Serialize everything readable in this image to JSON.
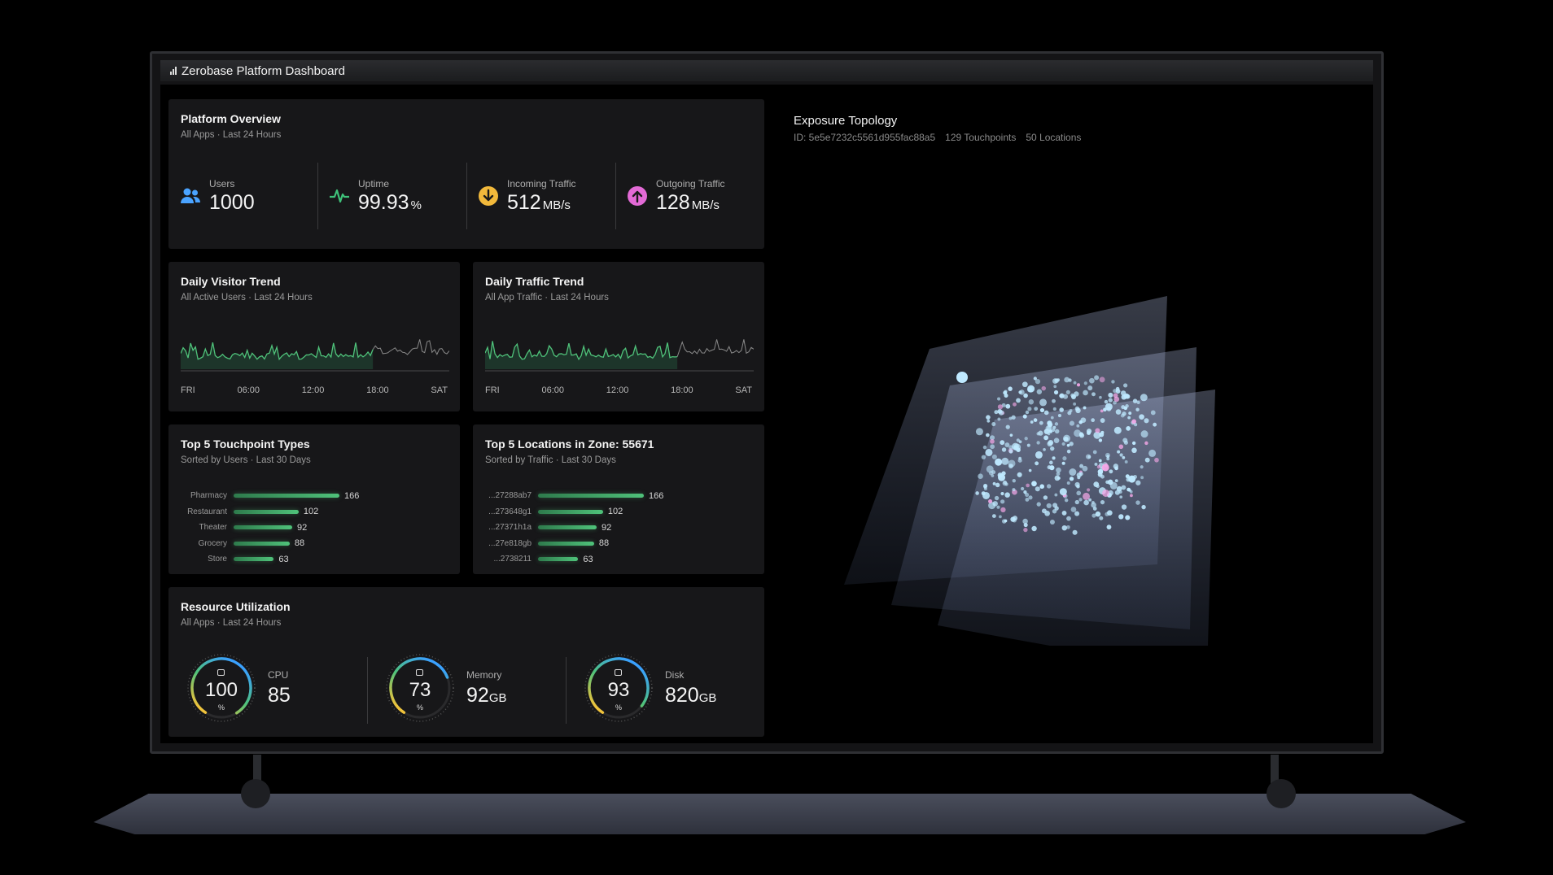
{
  "window": {
    "title": "Zerobase Platform Dashboard"
  },
  "overview": {
    "title": "Platform Overview",
    "subtitle": "All Apps · Last 24 Hours",
    "kpis": [
      {
        "label": "Users",
        "value": "1000",
        "unit": "",
        "icon": "users-icon",
        "color": "#4aa3ff"
      },
      {
        "label": "Uptime",
        "value": "99.93",
        "unit": "%",
        "icon": "pulse-icon",
        "color": "#3fc27a"
      },
      {
        "label": "Incoming Traffic",
        "value": "512",
        "unit": "MB/s",
        "icon": "arrow-down-circle-icon",
        "color": "#f2b93b"
      },
      {
        "label": "Outgoing Traffic",
        "value": "128",
        "unit": "MB/s",
        "icon": "arrow-up-circle-icon",
        "color": "#e36ad6"
      }
    ]
  },
  "visitor_trend": {
    "title": "Daily Visitor Trend",
    "subtitle": "All Active Users · Last 24 Hours",
    "ticks": [
      "FRI",
      "06:00",
      "12:00",
      "18:00",
      "SAT"
    ]
  },
  "traffic_trend": {
    "title": "Daily Traffic Trend",
    "subtitle": "All App Traffic · Last 24 Hours",
    "ticks": [
      "FRI",
      "06:00",
      "12:00",
      "18:00",
      "SAT"
    ]
  },
  "touchpoints": {
    "title": "Top 5 Touchpoint Types",
    "subtitle": "Sorted by Users · Last 30 Days",
    "items": [
      {
        "label": "Pharmacy",
        "value": 166
      },
      {
        "label": "Restaurant",
        "value": 102
      },
      {
        "label": "Theater",
        "value": 92
      },
      {
        "label": "Grocery",
        "value": 88
      },
      {
        "label": "Store",
        "value": 63
      }
    ]
  },
  "locations": {
    "title": "Top 5 Locations in Zone: 55671",
    "subtitle": "Sorted by Traffic · Last 30 Days",
    "items": [
      {
        "label": "...27288ab7",
        "value": 166
      },
      {
        "label": "...273648g1",
        "value": 102
      },
      {
        "label": "...27371h1a",
        "value": 92
      },
      {
        "label": "...27e818gb",
        "value": 88
      },
      {
        "label": "...2738211",
        "value": 63
      }
    ]
  },
  "resources": {
    "title": "Resource Utilization",
    "subtitle": "All Apps · Last 24 Hours",
    "gauges": [
      {
        "ring_value": "100",
        "ring_unit": "%",
        "fraction": 1.0,
        "label": "CPU",
        "value": "85",
        "unit": "",
        "icon": "cpu-icon"
      },
      {
        "ring_value": "73",
        "ring_unit": "%",
        "fraction": 0.73,
        "label": "Memory",
        "value": "92",
        "unit": "GB",
        "icon": "memory-icon"
      },
      {
        "ring_value": "93",
        "ring_unit": "%",
        "fraction": 0.93,
        "label": "Disk",
        "value": "820",
        "unit": "GB",
        "icon": "disk-icon"
      }
    ]
  },
  "topology": {
    "title": "Exposure Topology",
    "id": "ID: 5e5e7232c5561d955fac88a5",
    "touchpoints": "129 Touchpoints",
    "locations": "50 Locations"
  }
}
